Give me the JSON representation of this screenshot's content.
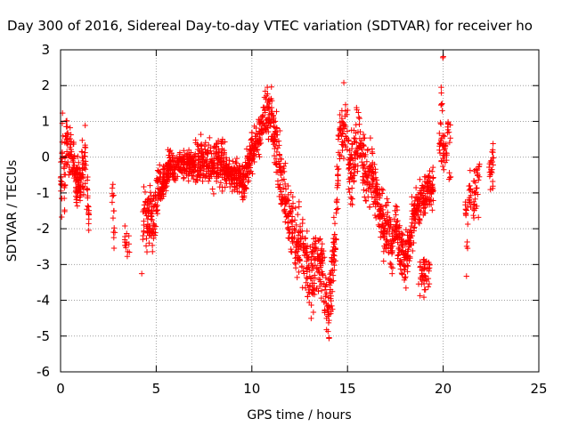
{
  "chart_data": {
    "type": "scatter",
    "title": "Day 300 of 2016, Sidereal Day-to-day VTEC variation (SDTVAR) for receiver ho",
    "xlabel": "GPS time / hours",
    "ylabel": "SDTVAR / TECUs",
    "xlim": [
      0,
      25
    ],
    "ylim": [
      -6,
      3
    ],
    "xticks": [
      "0",
      "5",
      "10",
      "15",
      "20",
      "25"
    ],
    "yticks": [
      "-6",
      "-5",
      "-4",
      "-3",
      "-2",
      "-1",
      "0",
      "1",
      "2",
      "3"
    ],
    "grid": true,
    "marker": "+",
    "colors": {
      "series": "#ff0000",
      "grid": "#a0a0a0",
      "axis": "#000000"
    },
    "series": [
      {
        "name": "SDTVAR",
        "color": "#ff0000",
        "trace": [
          [
            0.0,
            0.0
          ],
          [
            0.05,
            -1.5
          ],
          [
            0.1,
            0.6
          ],
          [
            0.2,
            -0.6
          ],
          [
            0.3,
            0.8
          ],
          [
            0.4,
            -0.3
          ],
          [
            0.5,
            0.5
          ],
          [
            0.6,
            -0.4
          ],
          [
            0.7,
            -0.1
          ],
          [
            0.8,
            -0.8
          ],
          [
            0.9,
            -0.7
          ],
          [
            1.0,
            -0.9
          ],
          [
            1.1,
            -0.4
          ],
          [
            1.2,
            -0.6
          ],
          [
            1.3,
            0.3
          ],
          [
            1.4,
            -1.2
          ],
          [
            1.5,
            -1.8
          ],
          [
            4.3,
            -2.2
          ],
          [
            4.4,
            -1.4
          ],
          [
            4.5,
            -1.8
          ],
          [
            4.6,
            -1.6
          ],
          [
            4.8,
            -1.8
          ],
          [
            5.0,
            -1.4
          ],
          [
            5.1,
            -0.9
          ],
          [
            5.3,
            -0.8
          ],
          [
            5.5,
            -0.5
          ],
          [
            5.7,
            -0.2
          ],
          [
            6.0,
            -0.3
          ],
          [
            6.3,
            -0.1
          ],
          [
            6.6,
            -0.2
          ],
          [
            7.0,
            -0.15
          ],
          [
            7.5,
            -0.1
          ],
          [
            8.0,
            -0.2
          ],
          [
            8.3,
            -0.1
          ],
          [
            8.6,
            -0.3
          ],
          [
            9.0,
            -0.5
          ],
          [
            9.3,
            -0.6
          ],
          [
            9.6,
            -0.7
          ],
          [
            9.8,
            -0.2
          ],
          [
            10.0,
            0.1
          ],
          [
            10.3,
            0.5
          ],
          [
            10.6,
            1.0
          ],
          [
            10.8,
            1.3
          ],
          [
            11.0,
            1.1
          ],
          [
            11.2,
            0.6
          ],
          [
            11.4,
            -0.2
          ],
          [
            11.6,
            -0.8
          ],
          [
            11.8,
            -1.3
          ],
          [
            12.0,
            -1.9
          ],
          [
            12.2,
            -2.1
          ],
          [
            12.5,
            -2.4
          ],
          [
            12.8,
            -2.8
          ],
          [
            13.0,
            -3.4
          ],
          [
            13.2,
            -3.2
          ],
          [
            13.4,
            -2.9
          ],
          [
            13.6,
            -3.0
          ],
          [
            13.8,
            -3.6
          ],
          [
            14.0,
            -4.4
          ],
          [
            14.2,
            -3.2
          ],
          [
            14.4,
            -1.8
          ],
          [
            14.5,
            -0.4
          ],
          [
            14.6,
            0.5
          ],
          [
            14.8,
            0.8
          ],
          [
            15.0,
            0.3
          ],
          [
            15.1,
            -0.6
          ],
          [
            15.3,
            -0.2
          ],
          [
            15.5,
            0.6
          ],
          [
            15.7,
            0.3
          ],
          [
            15.9,
            -0.4
          ],
          [
            16.1,
            -0.8
          ],
          [
            16.3,
            -0.4
          ],
          [
            16.5,
            -1.0
          ],
          [
            16.7,
            -1.4
          ],
          [
            16.9,
            -2.0
          ],
          [
            17.1,
            -1.8
          ],
          [
            17.3,
            -2.4
          ],
          [
            17.5,
            -1.9
          ],
          [
            17.9,
            -2.8
          ],
          [
            18.0,
            -3.2
          ],
          [
            18.1,
            -2.6
          ],
          [
            18.3,
            -2.2
          ],
          [
            18.5,
            -1.8
          ],
          [
            18.7,
            -1.4
          ],
          [
            18.9,
            -1.2
          ],
          [
            19.1,
            -1.0
          ],
          [
            19.3,
            -0.8
          ],
          [
            19.5,
            -0.9
          ]
        ],
        "spread": [
          [
            0.0,
            0.6
          ],
          [
            0.3,
            0.8
          ],
          [
            0.6,
            0.5
          ],
          [
            1.0,
            0.5
          ],
          [
            1.4,
            0.6
          ],
          [
            1.5,
            0.4
          ],
          [
            4.3,
            0.6
          ],
          [
            4.8,
            0.6
          ],
          [
            5.3,
            0.4
          ],
          [
            5.6,
            0.3
          ],
          [
            7.0,
            0.25
          ],
          [
            8.6,
            0.3
          ],
          [
            9.6,
            0.35
          ],
          [
            10.0,
            0.4
          ],
          [
            10.6,
            0.45
          ],
          [
            11.0,
            0.5
          ],
          [
            11.4,
            0.7
          ],
          [
            12.0,
            0.7
          ],
          [
            12.6,
            0.7
          ],
          [
            13.2,
            0.8
          ],
          [
            13.6,
            0.8
          ],
          [
            14.0,
            0.7
          ],
          [
            14.2,
            0.8
          ],
          [
            14.5,
            0.8
          ],
          [
            15.0,
            0.9
          ],
          [
            15.5,
            0.8
          ],
          [
            16.0,
            0.7
          ],
          [
            16.6,
            0.6
          ],
          [
            17.0,
            0.6
          ],
          [
            17.5,
            0.5
          ],
          [
            17.9,
            0.6
          ],
          [
            18.2,
            0.6
          ],
          [
            18.6,
            0.5
          ],
          [
            19.0,
            0.4
          ],
          [
            19.5,
            0.5
          ]
        ],
        "clusters": [
          [
            2.75,
            -1.3,
            0.06,
            0.6,
            10
          ],
          [
            2.8,
            -2.3,
            0.05,
            0.25,
            4
          ],
          [
            3.5,
            -2.4,
            0.15,
            0.4,
            14
          ],
          [
            4.2,
            -3.2,
            0.05,
            0.05,
            1
          ],
          [
            19.0,
            -3.3,
            0.3,
            0.5,
            45
          ],
          [
            19.9,
            1.5,
            0.06,
            0.5,
            8
          ],
          [
            20.0,
            2.8,
            0.02,
            0.05,
            2
          ],
          [
            20.0,
            0.3,
            0.2,
            0.5,
            35
          ],
          [
            20.3,
            0.7,
            0.1,
            0.4,
            10
          ],
          [
            20.3,
            -0.6,
            0.1,
            0.15,
            4
          ],
          [
            21.2,
            -1.5,
            0.1,
            0.35,
            10
          ],
          [
            21.25,
            -2.5,
            0.05,
            0.2,
            3
          ],
          [
            21.2,
            -3.3,
            0.02,
            0.05,
            1
          ],
          [
            21.6,
            -1.0,
            0.25,
            0.55,
            40
          ],
          [
            21.8,
            -0.3,
            0.1,
            0.3,
            8
          ],
          [
            22.5,
            -0.4,
            0.1,
            0.45,
            18
          ],
          [
            22.6,
            0.0,
            0.05,
            0.3,
            6
          ]
        ]
      }
    ]
  }
}
